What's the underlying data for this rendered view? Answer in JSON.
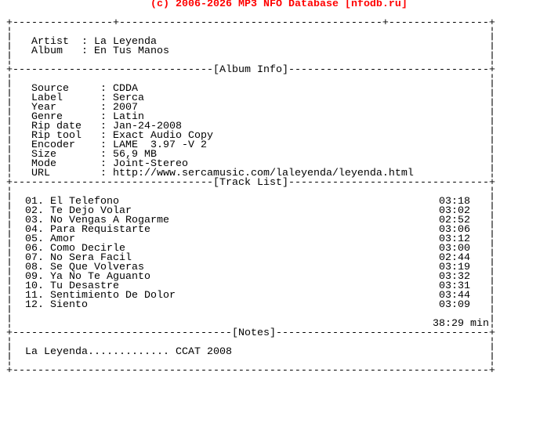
{
  "header": {
    "text": "(c) 2006-2026 MP3 NFO Database [nfodb.ru]",
    "color": "#ff0000"
  },
  "top": {
    "artist_label": "Artist",
    "artist": "La Leyenda",
    "album_label": "Album",
    "album": "En Tus Manos"
  },
  "album_info": {
    "title": "[Album Info]",
    "fields": [
      {
        "label": "Source",
        "value": "CDDA"
      },
      {
        "label": "Label",
        "value": "Serca"
      },
      {
        "label": "Year",
        "value": "2007"
      },
      {
        "label": "Genre",
        "value": "Latin"
      },
      {
        "label": "Rip date",
        "value": "Jan-24-2008"
      },
      {
        "label": "Rip tool",
        "value": "Exact Audio Copy"
      },
      {
        "label": "Encoder",
        "value": "LAME  3.97 -V 2"
      },
      {
        "label": "Size",
        "value": "56,9 MB"
      },
      {
        "label": "Mode",
        "value": "Joint-Stereo"
      },
      {
        "label": "URL",
        "value": "http://www.sercamusic.com/laleyenda/leyenda.html"
      }
    ]
  },
  "track_list": {
    "title": "[Track List]",
    "tracks": [
      {
        "title": "01. El Telefono",
        "time": "03:18"
      },
      {
        "title": "02. Te Dejo Volar",
        "time": "03:02"
      },
      {
        "title": "03. No Vengas A Rogarme",
        "time": "02:52"
      },
      {
        "title": "04. Para Requistarte",
        "time": "03:06"
      },
      {
        "title": "05. Amor",
        "time": "03:12"
      },
      {
        "title": "06. Como Decirle",
        "time": "03:00"
      },
      {
        "title": "07. No Sera Facil",
        "time": "02:44"
      },
      {
        "title": "08. Se Que Volveras",
        "time": "03:19"
      },
      {
        "title": "09. Ya No Te Aguanto",
        "time": "03:32"
      },
      {
        "title": "10. Tu Desastre",
        "time": "03:31"
      },
      {
        "title": "11. Sentimiento De Dolor",
        "time": "03:44"
      },
      {
        "title": "12. Siento",
        "time": "03:09"
      }
    ],
    "total": "38:29 min"
  },
  "notes": {
    "title": "[Notes]",
    "left": "La Leyenda.............",
    "right": "CCAT 2008"
  }
}
